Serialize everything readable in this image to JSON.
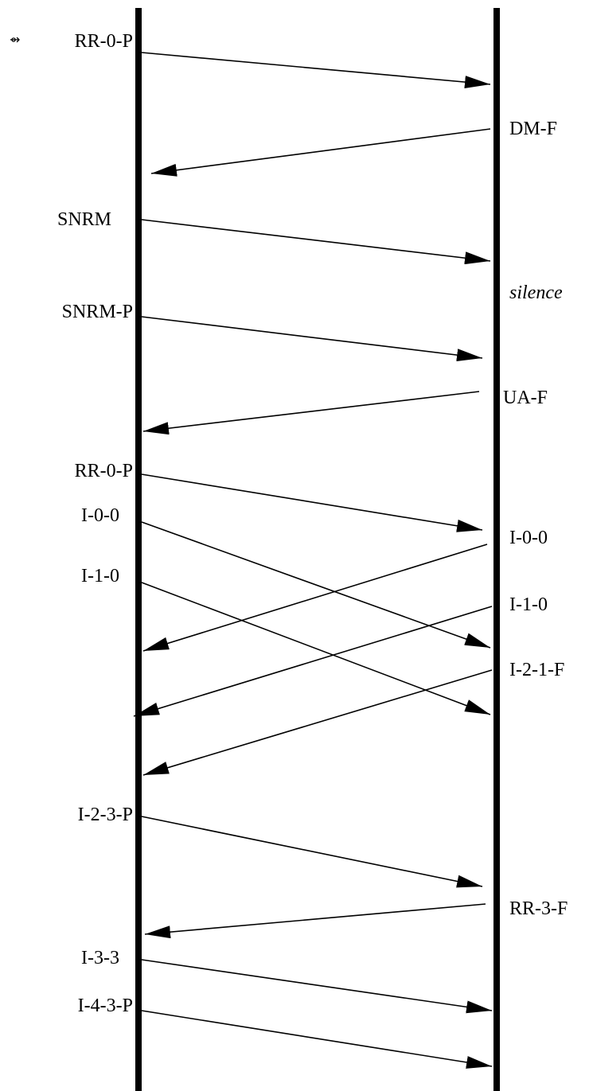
{
  "primary_labels": [
    {
      "id": "rr-0-p-start",
      "text": "RR-0-P"
    },
    {
      "id": "snrm",
      "text": "SNRM"
    },
    {
      "id": "snrm-p",
      "text": "SNRM-P"
    },
    {
      "id": "rr-0-p",
      "text": "RR-0-P"
    },
    {
      "id": "i-0-0",
      "text": "I-0-0"
    },
    {
      "id": "i-1-0",
      "text": "I-1-0"
    },
    {
      "id": "i-2-3-p",
      "text": "I-2-3-P"
    },
    {
      "id": "i-3-3",
      "text": "I-3-3"
    },
    {
      "id": "i-4-3-p",
      "text": "I-4-3-P"
    }
  ],
  "secondary_labels": [
    {
      "id": "dm-f",
      "text": "DM-F"
    },
    {
      "id": "silence",
      "text": "silence",
      "italic": true
    },
    {
      "id": "ua-f",
      "text": "UA-F"
    },
    {
      "id": "i-0-0-reply",
      "text": "I-0-0"
    },
    {
      "id": "i-1-0-reply",
      "text": "I-1-0"
    },
    {
      "id": "i-2-1-f",
      "text": "I-2-1-F"
    },
    {
      "id": "rr-3-f",
      "text": "RR-3-F"
    }
  ],
  "start_marker": {
    "icon": "start-arrow-icon",
    "glyph": "⇴"
  }
}
